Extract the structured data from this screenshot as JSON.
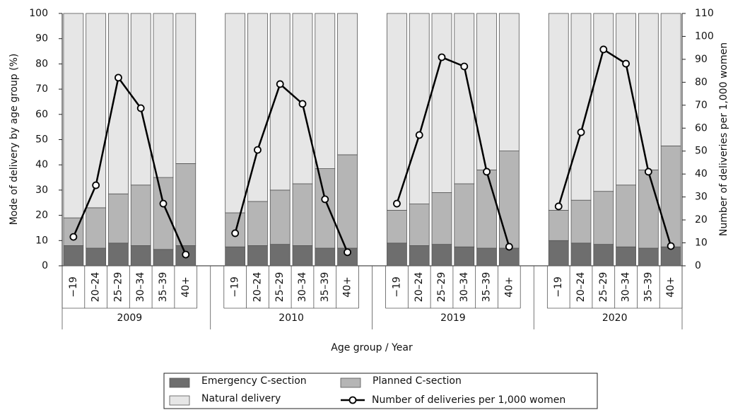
{
  "chart_data": {
    "type": "bar",
    "stacked": true,
    "y_label": "Mode of delivery by age group (%)",
    "y2_label": "Number of deliveries per 1,000 women",
    "x_label": "Age group / Year",
    "group_labels": [
      "2009",
      "2010",
      "2019",
      "2020"
    ],
    "categories": [
      "−19",
      "20–24",
      "25–29",
      "30–34",
      "35–39",
      "40+",
      "−19",
      "20–24",
      "25–29",
      "30–34",
      "35–39",
      "40+",
      "−19",
      "20–24",
      "25–29",
      "30–34",
      "35–39",
      "40+",
      "−19",
      "20–24",
      "25–29",
      "30–34",
      "35–39",
      "40+"
    ],
    "series": [
      {
        "name": "Emergency C-section",
        "color": "#6e6e6e",
        "values": [
          8,
          7,
          9,
          8,
          6.5,
          8,
          7.5,
          8,
          8.5,
          8,
          7,
          7,
          9,
          8,
          8.5,
          7.5,
          7,
          7,
          10,
          9,
          8.5,
          7.5,
          7,
          7.5
        ]
      },
      {
        "name": "Planned C-section",
        "color": "#b5b5b5",
        "values": [
          11,
          16,
          19.5,
          24,
          28.5,
          32.5,
          13.5,
          17.5,
          21.5,
          24.5,
          31.5,
          37,
          13,
          16.5,
          20.5,
          25,
          31,
          38.5,
          12,
          17,
          21,
          24.5,
          31,
          40
        ]
      },
      {
        "name": "Natural delivery",
        "color": "#e6e6e6",
        "values": [
          81,
          77,
          71.5,
          68,
          65,
          59.5,
          79,
          74.5,
          70,
          67.5,
          61.5,
          56,
          78,
          75.5,
          71,
          67.5,
          62,
          54.5,
          78,
          74,
          70.5,
          68,
          62,
          52.5
        ]
      },
      {
        "name": "Number of deliveries per 1,000 women",
        "type": "line",
        "axis": "y2",
        "color": "#000000",
        "values": [
          12.6,
          35.1,
          82,
          68.7,
          27.1,
          4.9,
          14.2,
          50.5,
          79.2,
          70.6,
          29,
          5.9,
          27.1,
          57,
          90.9,
          86.9,
          41,
          8.3,
          25.9,
          58.2,
          94.3,
          88.1,
          41,
          8.6
        ]
      }
    ],
    "ylim": [
      0,
      100
    ],
    "yticks": [
      0,
      10,
      20,
      30,
      40,
      50,
      60,
      70,
      80,
      90,
      100
    ],
    "y2lim": [
      0,
      110
    ],
    "y2ticks": [
      0,
      10,
      20,
      30,
      40,
      50,
      60,
      70,
      80,
      90,
      100,
      110
    ],
    "legend": "bottom"
  }
}
